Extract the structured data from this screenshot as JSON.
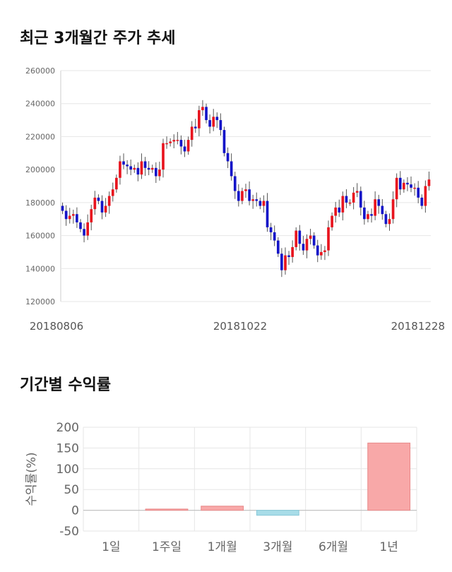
{
  "sections": {
    "price_title": "최근 3개월간 주가 추세",
    "returns_title": "기간별 수익률"
  },
  "chart_data": [
    {
      "type": "candlestick",
      "title": "최근 3개월간 주가 추세",
      "ylim": [
        120000,
        260000
      ],
      "y_ticks": [
        "260000",
        "240000",
        "220000",
        "200000",
        "180000",
        "160000",
        "140000",
        "120000"
      ],
      "x_labels": [
        "20180806",
        "20181022",
        "20181228"
      ],
      "grid": true,
      "colors": {
        "up": "#e8141e",
        "down": "#1414c8"
      },
      "close": [
        175000,
        170000,
        172000,
        173000,
        168000,
        164000,
        160000,
        168000,
        176000,
        183000,
        181000,
        174000,
        178000,
        184000,
        188000,
        195000,
        205000,
        203000,
        202000,
        200000,
        201000,
        197000,
        205000,
        201000,
        200000,
        201000,
        196000,
        200000,
        216000,
        216000,
        217000,
        218000,
        218000,
        214000,
        211000,
        218000,
        226000,
        225000,
        236000,
        238000,
        230000,
        226000,
        232000,
        230000,
        224000,
        210000,
        205000,
        196000,
        187000,
        181000,
        187000,
        188000,
        181000,
        182000,
        181000,
        178000,
        181000,
        165000,
        162000,
        157000,
        149000,
        139000,
        148000,
        147000,
        153000,
        163000,
        155000,
        151000,
        158000,
        160000,
        154000,
        148000,
        150000,
        151000,
        165000,
        172000,
        177000,
        174000,
        184000,
        180000,
        180000,
        186000,
        187000,
        177000,
        170000,
        173000,
        172000,
        182000,
        178000,
        173000,
        167000,
        170000,
        182000,
        195000,
        188000,
        192000,
        191000,
        189000,
        189000,
        183000,
        178000,
        190000,
        194000
      ]
    },
    {
      "type": "bar",
      "title": "기간별 수익률",
      "ylabel": "수익률(%)",
      "categories": [
        "1일",
        "1주일",
        "1개월",
        "3개월",
        "6개월",
        "1년"
      ],
      "values": [
        0,
        3,
        10,
        -12,
        0,
        162
      ],
      "ylim": [
        -50,
        200
      ],
      "y_ticks": [
        "200",
        "150",
        "100",
        "50",
        "0",
        "-50"
      ],
      "colors": {
        "positive": "#f8a8a8",
        "negative": "#a8dce8"
      }
    }
  ]
}
